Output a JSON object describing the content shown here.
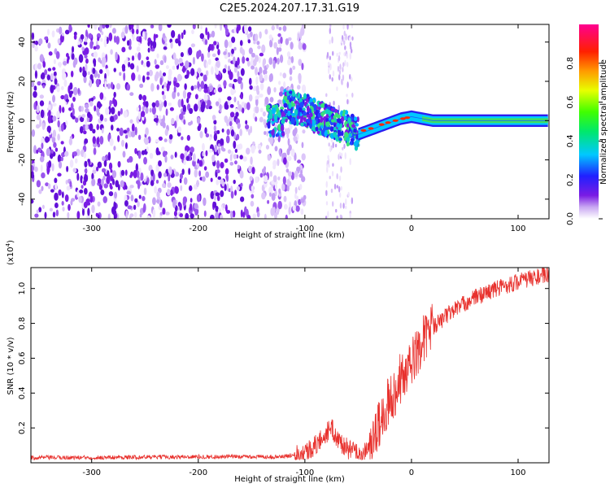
{
  "chart_data": [
    {
      "type": "heatmap",
      "title": "C2E5.2024.207.17.31.G19",
      "xlabel": "Height of straight line (km)",
      "ylabel": "Frequency (Hz)",
      "xlim": [
        -357,
        129
      ],
      "ylim": [
        -50,
        49
      ],
      "x_ticks": [
        -300,
        -200,
        -100,
        0,
        100
      ],
      "y_ticks": [
        -40,
        -20,
        0,
        20,
        40
      ],
      "colorbar": {
        "label": "Normalized spectral amplitude",
        "ticks": [
          "0.0",
          "0.2",
          "0.4",
          "0.6",
          "0.8"
        ],
        "range": [
          0,
          1
        ],
        "colormap": "rainbow (white-violet-blue-cyan-green-yellow-orange-red-magenta)"
      },
      "features": {
        "noise_region_x": [
          -357,
          -120
        ],
        "signal_ridge": {
          "x": [
            -120,
            -100,
            -80,
            -60,
            -50,
            -40,
            -30,
            -20,
            -10,
            0,
            10,
            20,
            40,
            60,
            80,
            100,
            129
          ],
          "y": [
            8,
            5,
            0,
            -4,
            -7,
            -5,
            -3,
            -1,
            1,
            2,
            1,
            0,
            0,
            0,
            0,
            0,
            0
          ]
        }
      }
    },
    {
      "type": "line",
      "xlabel": "Height of straight line (km)",
      "ylabel": "SNR (10 * v/v)",
      "y_multiplier": "(x10",
      "y_multiplier_exp": "4",
      "xlim": [
        -357,
        129
      ],
      "ylim": [
        0,
        1.12
      ],
      "x_ticks": [
        -300,
        -200,
        -100,
        0,
        100
      ],
      "y_ticks": [
        "0.2",
        "0.4",
        "0.6",
        "0.8",
        "1.0"
      ],
      "series": [
        {
          "color": "#e8312d",
          "x": [
            -357,
            -300,
            -200,
            -120,
            -100,
            -90,
            -80,
            -75,
            -70,
            -60,
            -50,
            -40,
            -30,
            -20,
            -15,
            -10,
            0,
            10,
            20,
            30,
            40,
            60,
            80,
            100,
            120,
            129
          ],
          "y": [
            0.03,
            0.03,
            0.035,
            0.035,
            0.06,
            0.1,
            0.17,
            0.2,
            0.14,
            0.08,
            0.05,
            0.06,
            0.22,
            0.38,
            0.4,
            0.48,
            0.57,
            0.7,
            0.78,
            0.83,
            0.88,
            0.95,
            1.0,
            1.04,
            1.07,
            1.08
          ]
        }
      ]
    }
  ]
}
